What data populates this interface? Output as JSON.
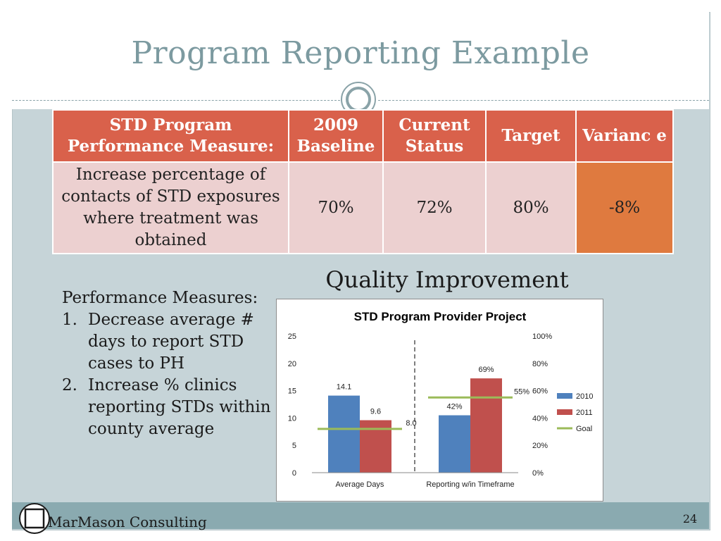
{
  "slide": {
    "title": "Program Reporting Example",
    "page_number": "24",
    "footer": "MarMason Consulting"
  },
  "table": {
    "headers": [
      "STD Program Performance Measure:",
      "2009 Baseline",
      "Current Status",
      "Target",
      "Varianc e"
    ],
    "row": {
      "measure": "Increase percentage of contacts of STD exposures where treatment was obtained",
      "baseline": "70%",
      "current": "72%",
      "target": "80%",
      "variance": "-8%"
    }
  },
  "quality_improvement": {
    "heading": "Quality Improvement",
    "measures_heading": "Performance Measures:",
    "measures": [
      {
        "num": "1.",
        "text": "Decrease average # days to report STD cases to PH"
      },
      {
        "num": "2.",
        "text": "Increase % clinics reporting STDs within county average"
      }
    ]
  },
  "colors": {
    "header_fill": "#d9614b",
    "cell_fill": "#ecd0d0",
    "variance_fill": "#df7a3f",
    "series_2010": "#4f81bd",
    "series_2011": "#c0504d",
    "goal": "#9bbb59"
  },
  "chart_data": {
    "type": "bar",
    "title": "STD Program Provider Project",
    "categories": [
      "Average Days",
      "Reporting w/in Timeframe"
    ],
    "series": [
      {
        "name": "2010",
        "values": [
          14.1,
          42
        ],
        "labels": [
          "14.1",
          "42%"
        ],
        "color": "#4f81bd"
      },
      {
        "name": "2011",
        "values": [
          9.6,
          69
        ],
        "labels": [
          "9.6",
          "69%"
        ],
        "color": "#c0504d"
      }
    ],
    "goal": {
      "name": "Goal",
      "values": [
        8.0,
        55
      ],
      "labels": [
        "8.0",
        "55%"
      ],
      "color": "#9bbb59"
    },
    "y_left": {
      "ylim": [
        0,
        25
      ],
      "ticks": [
        "0",
        "5",
        "10",
        "15",
        "20",
        "25"
      ]
    },
    "y_right": {
      "ylim": [
        0,
        100
      ],
      "ticks": [
        "0%",
        "20%",
        "40%",
        "60%",
        "80%",
        "100%"
      ]
    },
    "category_axis": [
      "left",
      "right"
    ],
    "divider": "dashed",
    "legend": [
      "2010",
      "2011",
      "Goal"
    ],
    "legend_position": "right"
  }
}
